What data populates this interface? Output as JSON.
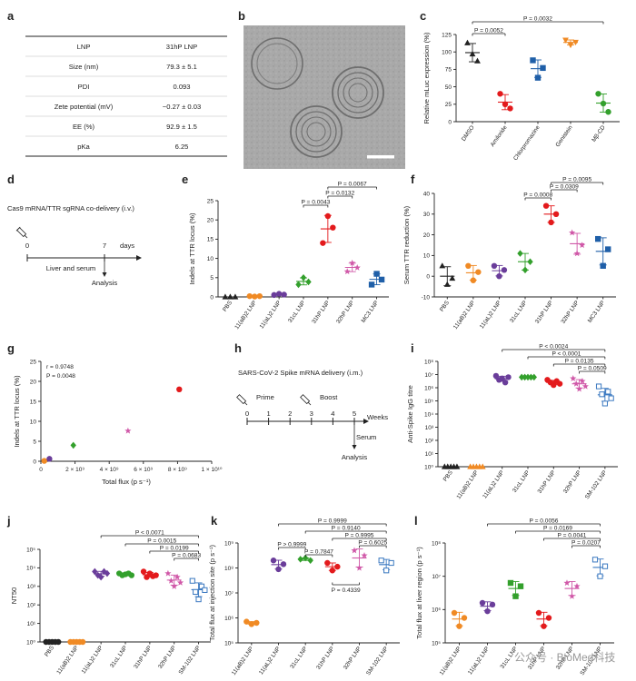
{
  "panel_letters": [
    "a",
    "b",
    "c",
    "d",
    "e",
    "f",
    "g",
    "h",
    "i",
    "j",
    "k",
    "l"
  ],
  "watermark": "公众号 · BioMed科技",
  "colors": {
    "PBS": "#222222",
    "11(aB)2": "#f08a24",
    "11(aL)2": "#6a3d9a",
    "31cL": "#33a02c",
    "31hP": "#e31a1c",
    "32hP": "#d058a8",
    "MC3": "#1f5fa8",
    "SM-102": "#3a78c0",
    "DMSO": "#222222",
    "Amiloride": "#e31a1c",
    "Chlorpromazine": "#1f5fa8",
    "Genistein": "#f08a24",
    "MβCD": "#33a02c"
  },
  "table_a": {
    "rows": [
      [
        "LNP",
        "31hP LNP"
      ],
      [
        "Size (nm)",
        "79.3 ± 5.1"
      ],
      [
        "PDI",
        "0.093"
      ],
      [
        "Zete potential (mV)",
        "−0.27 ± 0.03"
      ],
      [
        "EE (%)",
        "92.9 ± 1.5"
      ],
      [
        "pKa",
        "6.25"
      ]
    ]
  },
  "timeline_d": {
    "title": "Cas9 mRNA/TTR sgRNA co-delivery (i.v.)",
    "t0": "0",
    "t7": "7",
    "unit": "days",
    "sample": "Liver and serum",
    "analysis": "Analysis"
  },
  "timeline_h": {
    "title": "SARS-CoV-2 Spike mRNA delivery (i.m.)",
    "ticks": [
      "0",
      "1",
      "2",
      "3",
      "4",
      "5"
    ],
    "unit": "Weeks",
    "prime": "Prime",
    "boost": "Boost",
    "sample": "Serum",
    "analysis": "Analysis"
  },
  "chart_data": [
    {
      "panel": "c",
      "type": "scatter",
      "ylabel": "Relative mLuc expression (%)",
      "ylim": [
        0,
        125
      ],
      "yticks": [
        0,
        25,
        50,
        75,
        100,
        125
      ],
      "categories": [
        "DMSO",
        "Amiloride",
        "Chlorpromazine",
        "Genistein",
        "Mβ-CD"
      ],
      "color_keys": [
        "DMSO",
        "Amiloride",
        "Chlorpromazine",
        "Genistein",
        "MβCD"
      ],
      "markers": [
        "triangle",
        "circle",
        "square",
        "triangle-down",
        "circle"
      ],
      "points": [
        [
          113,
          97,
          87
        ],
        [
          40,
          25,
          19
        ],
        [
          88,
          63,
          77
        ],
        [
          117,
          110,
          114
        ],
        [
          40,
          26,
          14
        ]
      ],
      "brackets": [
        {
          "from": 0,
          "to": 1,
          "label": "P = 0.0052"
        },
        {
          "from": 0,
          "to": 4,
          "label": "P = 0.0032"
        }
      ]
    },
    {
      "panel": "e",
      "type": "scatter",
      "ylabel": "Indels at TTR locus (%)",
      "ylim": [
        0,
        25
      ],
      "yticks": [
        0,
        5,
        10,
        15,
        20,
        25
      ],
      "categories": [
        "PBS",
        "11(aB)2 LNP",
        "11(aL)2 LNP",
        "31cL LNP",
        "31hP LNP",
        "32hP LNP",
        "MC3 LNP"
      ],
      "color_keys": [
        "PBS",
        "11(aB)2",
        "11(aL)2",
        "31cL",
        "31hP",
        "32hP",
        "MC3"
      ],
      "markers": [
        "triangle",
        "circle",
        "circle",
        "diamond",
        "circle",
        "star",
        "square"
      ],
      "points": [
        [
          0,
          0,
          0
        ],
        [
          0.2,
          0.1,
          0.2
        ],
        [
          0.5,
          0.8,
          0.6
        ],
        [
          3.2,
          5,
          3.9
        ],
        [
          14,
          21,
          18
        ],
        [
          6.6,
          8.8,
          7.6
        ],
        [
          3.2,
          6,
          4.5
        ]
      ],
      "brackets": [
        {
          "from": 4,
          "to": 3,
          "label": "P = 0.0043"
        },
        {
          "from": 4,
          "to": 5,
          "label": "P = 0.0132"
        },
        {
          "from": 4,
          "to": 6,
          "label": "P = 0.0067"
        }
      ]
    },
    {
      "panel": "f",
      "type": "scatter",
      "ylabel": "Serum TTR reduction (%)",
      "ylim": [
        -10,
        40
      ],
      "yticks": [
        -10,
        0,
        10,
        20,
        30,
        40
      ],
      "categories": [
        "PBS",
        "11(aB)2 LNP",
        "11(aL)2 LNP",
        "31cL LNP",
        "31hP LNP",
        "32hP LNP",
        "MC3 LNP"
      ],
      "color_keys": [
        "PBS",
        "11(aB)2",
        "11(aL)2",
        "31cL",
        "31hP",
        "32hP",
        "MC3"
      ],
      "markers": [
        "triangle",
        "circle",
        "circle",
        "diamond",
        "circle",
        "star",
        "square"
      ],
      "points": [
        [
          5,
          -4,
          -1
        ],
        [
          5,
          -2,
          2
        ],
        [
          5,
          0,
          3
        ],
        [
          11,
          3,
          7
        ],
        [
          34,
          26,
          30
        ],
        [
          21,
          11,
          15
        ],
        [
          18,
          5,
          13
        ]
      ],
      "brackets": [
        {
          "from": 4,
          "to": 3,
          "label": "P = 0.0008"
        },
        {
          "from": 4,
          "to": 5,
          "label": "P = 0.0309"
        },
        {
          "from": 4,
          "to": 6,
          "label": "P = 0.0095"
        }
      ]
    },
    {
      "panel": "g",
      "type": "scatter",
      "xlabel": "Total flux (p s⁻¹)",
      "ylabel": "Indels at TTR locus (%)",
      "xlim": [
        0,
        10000000000.0
      ],
      "xticks": [
        "0",
        "2 × 10⁹",
        "4 × 10⁹",
        "6 × 10⁹",
        "8 × 10⁹",
        "1 × 10¹⁰"
      ],
      "ylim": [
        0,
        25
      ],
      "yticks": [
        0,
        5,
        10,
        15,
        20,
        25
      ],
      "stats": [
        "r = 0.9748",
        "P = 0.0048"
      ],
      "points": [
        {
          "x": 200000000.0,
          "y": 0.1,
          "key": "11(aB)2",
          "marker": "circle"
        },
        {
          "x": 500000000.0,
          "y": 0.6,
          "key": "11(aL)2",
          "marker": "circle"
        },
        {
          "x": 1900000000.0,
          "y": 4.0,
          "key": "31cL",
          "marker": "diamond"
        },
        {
          "x": 5100000000.0,
          "y": 7.6,
          "key": "32hP",
          "marker": "star"
        },
        {
          "x": 8100000000.0,
          "y": 18.0,
          "key": "31hP",
          "marker": "circle"
        }
      ]
    },
    {
      "panel": "i",
      "type": "scatter",
      "ylabel": "Anti-Spike IgG titre",
      "yscale": "log",
      "ylim_exp": [
        0,
        8
      ],
      "yticks": [
        "10⁰",
        "10¹",
        "10²",
        "10³",
        "10⁴",
        "10⁵",
        "10⁶",
        "10⁷",
        "10⁸"
      ],
      "categories": [
        "PBS",
        "11(aB)2 LNP",
        "11(aL)2 LNP",
        "31cL LNP",
        "31hP LNP",
        "32hP LNP",
        "SM-102 LNP"
      ],
      "color_keys": [
        "PBS",
        "11(aB)2",
        "11(aL)2",
        "31cL",
        "31hP",
        "32hP",
        "SM-102"
      ],
      "markers": [
        "triangle",
        "triangle",
        "circle",
        "diamond",
        "circle",
        "star",
        "square-open"
      ],
      "points_exp": [
        [
          0,
          0,
          0,
          0,
          0
        ],
        [
          0,
          0,
          0,
          0,
          0
        ],
        [
          6.9,
          6.6,
          6.7,
          6.4,
          6.8
        ],
        [
          6.8,
          6.8,
          6.8,
          6.8,
          6.8
        ],
        [
          6.6,
          6.4,
          6.2,
          6.5,
          6.3
        ],
        [
          6.7,
          6.3,
          5.9,
          6.5,
          6.1
        ],
        [
          6.1,
          5.5,
          4.8,
          5.7,
          5.2
        ]
      ],
      "brackets": [
        {
          "from": 2,
          "to": 6,
          "label": "P < 0.0024"
        },
        {
          "from": 3,
          "to": 6,
          "label": "P < 0.0001"
        },
        {
          "from": 4,
          "to": 6,
          "label": "P = 0.0135"
        },
        {
          "from": 5,
          "to": 6,
          "label": "P = 0.0509"
        }
      ]
    },
    {
      "panel": "j",
      "type": "scatter",
      "ylabel": "NT50",
      "yscale": "log",
      "ylim_exp": [
        0,
        5
      ],
      "yticks": [
        "10⁰",
        "10¹",
        "10²",
        "10³",
        "10⁴",
        "10⁵"
      ],
      "categories": [
        "PBS",
        "11(aB)2 LNP",
        "11(aL)2 LNP",
        "31cL LNP",
        "31hP LNP",
        "32hP LNP",
        "SM-102 LNP"
      ],
      "color_keys": [
        "PBS",
        "11(aB)2",
        "11(aL)2",
        "31cL",
        "31hP",
        "32hP",
        "SM-102"
      ],
      "markers": [
        "circle",
        "circle",
        "diamond",
        "circle",
        "circle",
        "star",
        "square-open"
      ],
      "points_exp": [
        [
          0,
          0,
          0,
          0,
          0
        ],
        [
          0,
          0,
          0,
          0,
          0
        ],
        [
          3.8,
          3.6,
          3.5,
          3.8,
          3.7
        ],
        [
          3.7,
          3.6,
          3.65,
          3.7,
          3.6
        ],
        [
          3.8,
          3.5,
          3.7,
          3.55,
          3.6
        ],
        [
          3.7,
          3.3,
          3.0,
          3.5,
          3.2
        ],
        [
          3.3,
          2.7,
          2.3,
          3.0,
          2.8
        ]
      ],
      "brackets": [
        {
          "from": 2,
          "to": 6,
          "label": "P < 0.0071"
        },
        {
          "from": 3,
          "to": 6,
          "label": "P = 0.0015"
        },
        {
          "from": 4,
          "to": 6,
          "label": "P = 0.0199"
        },
        {
          "from": 5,
          "to": 6,
          "label": "P = 0.0683"
        }
      ]
    },
    {
      "panel": "k",
      "type": "scatter",
      "ylabel": "Total flux at injection site (p s⁻¹)",
      "yscale": "log",
      "ylim_exp": [
        5,
        9
      ],
      "yticks": [
        "10⁵",
        "10⁶",
        "10⁷",
        "10⁸",
        "10⁹"
      ],
      "categories": [
        "11(aB)2 LNP",
        "11(aL)2 LNP",
        "31cL LNP",
        "31hP LNP",
        "32hP LNP",
        "SM-102 LNP"
      ],
      "color_keys": [
        "11(aB)2",
        "11(aL)2",
        "31cL",
        "31hP",
        "32hP",
        "SM-102"
      ],
      "markers": [
        "circle",
        "circle",
        "diamond",
        "circle",
        "star",
        "square-open"
      ],
      "points_exp": [
        [
          5.85,
          5.75,
          5.8
        ],
        [
          8.3,
          7.95,
          8.15
        ],
        [
          8.35,
          8.4,
          8.3
        ],
        [
          8.2,
          7.9,
          8.05
        ],
        [
          8.7,
          8.0,
          8.5
        ],
        [
          8.3,
          7.9,
          8.2
        ]
      ],
      "brackets_top": [
        {
          "from": 1,
          "to": 5,
          "label": "P = 0.9999"
        },
        {
          "from": 2,
          "to": 5,
          "label": "P = 0.9140"
        },
        {
          "from": 3,
          "to": 5,
          "label": "P = 0.9995"
        },
        {
          "from": 4,
          "to": 5,
          "label": "P = 0.6025"
        }
      ],
      "brackets_mid": [
        {
          "from": 1,
          "to": 2,
          "label": "P > 0.9999"
        },
        {
          "from": 2,
          "to": 3,
          "label": "P = 0.7847"
        }
      ],
      "brackets_low": [
        {
          "from": 3,
          "to": 4,
          "label": "P = 0.4339"
        }
      ]
    },
    {
      "panel": "l",
      "type": "scatter",
      "ylabel": "Total flux at liver region (p s⁻¹)",
      "yscale": "log",
      "ylim_exp": [
        5,
        8
      ],
      "yticks": [
        "10⁵",
        "10⁶",
        "10⁷",
        "10⁸"
      ],
      "categories": [
        "11(aB)2 LNP",
        "11(aL)2 LNP",
        "31cL LNP",
        "31hP LNP",
        "32hP LNP",
        "SM-102 LNP"
      ],
      "color_keys": [
        "11(aB)2",
        "11(aL)2",
        "31cL",
        "31hP",
        "32hP",
        "SM-102"
      ],
      "markers": [
        "circle",
        "circle",
        "square",
        "circle",
        "star",
        "square-open"
      ],
      "points_exp": [
        [
          5.9,
          5.5,
          5.75
        ],
        [
          6.2,
          5.95,
          6.15
        ],
        [
          6.8,
          6.4,
          6.7
        ],
        [
          5.9,
          5.5,
          5.75
        ],
        [
          6.8,
          6.4,
          6.7
        ],
        [
          7.5,
          7.0,
          7.3
        ]
      ],
      "brackets": [
        {
          "from": 1,
          "to": 5,
          "label": "P = 0.0056"
        },
        {
          "from": 2,
          "to": 5,
          "label": "P = 0.0169"
        },
        {
          "from": 3,
          "to": 5,
          "label": "P = 0.0041"
        },
        {
          "from": 4,
          "to": 5,
          "label": "P = 0.0207"
        }
      ]
    }
  ]
}
